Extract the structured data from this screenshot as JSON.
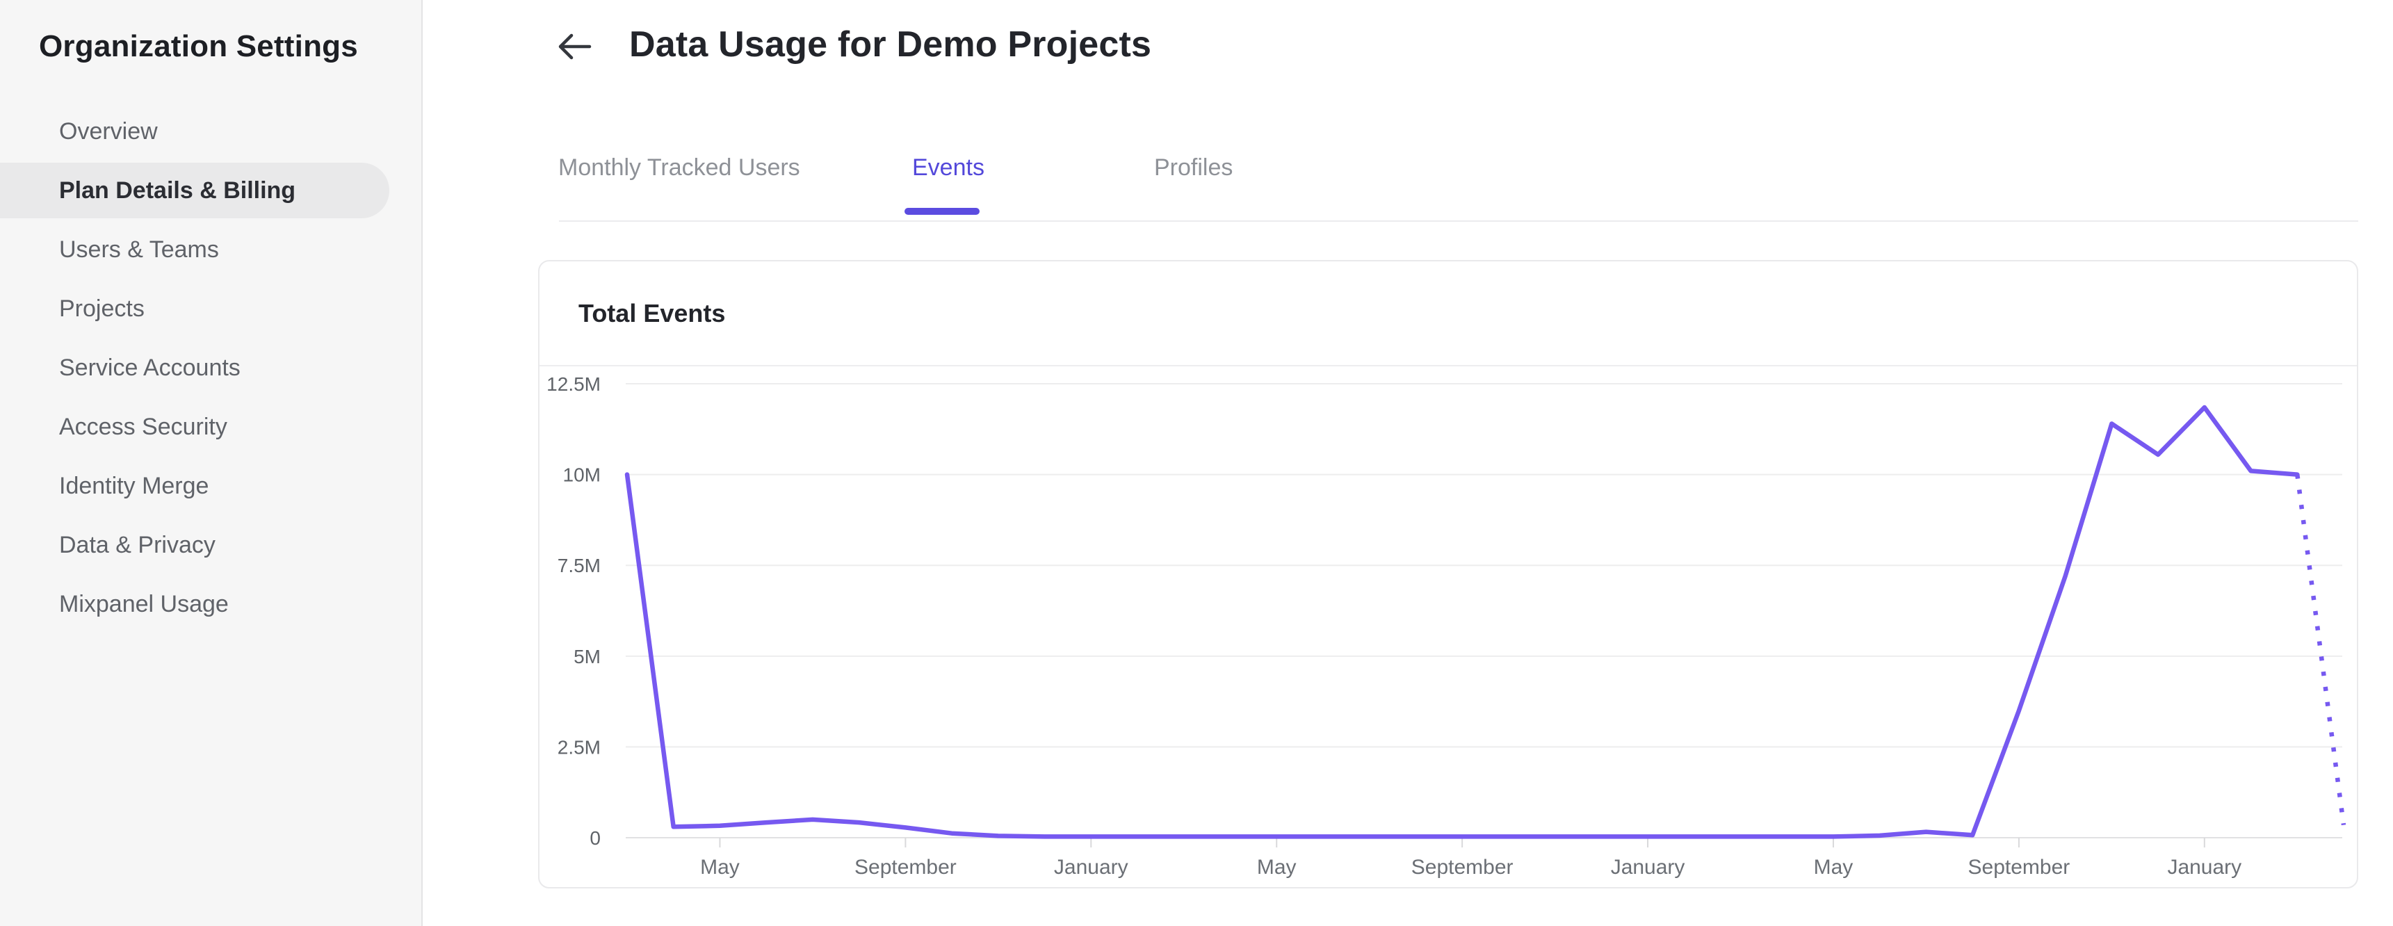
{
  "sidebar": {
    "title": "Organization Settings",
    "items": [
      {
        "label": "Overview",
        "active": false
      },
      {
        "label": "Plan Details & Billing",
        "active": true
      },
      {
        "label": "Users & Teams",
        "active": false
      },
      {
        "label": "Projects",
        "active": false
      },
      {
        "label": "Service Accounts",
        "active": false
      },
      {
        "label": "Access Security",
        "active": false
      },
      {
        "label": "Identity Merge",
        "active": false
      },
      {
        "label": "Data & Privacy",
        "active": false
      },
      {
        "label": "Mixpanel Usage",
        "active": false
      }
    ]
  },
  "header": {
    "back_icon": "arrow-left-icon",
    "title": "Data Usage for Demo Projects"
  },
  "tabs": {
    "items": [
      "Monthly Tracked Users",
      "Events",
      "Profiles"
    ],
    "active": "Events"
  },
  "card": {
    "title": "Total Events"
  },
  "colors": {
    "accent": "#5348da",
    "tab_indicator": "#5b4ce0",
    "chart_line": "#7659f0"
  },
  "chart_data": {
    "type": "line",
    "title": "Total Events",
    "series_name": "Total Events",
    "x_unit": "month",
    "y_unit": "events (millions)",
    "ylim": [
      0,
      12.5
    ],
    "y_ticks": [
      0,
      2.5,
      5,
      7.5,
      10,
      12.5
    ],
    "y_tick_labels": [
      "0",
      "2.5M",
      "5M",
      "7.5M",
      "10M",
      "12.5M"
    ],
    "x_tick_labels": [
      "May",
      "September",
      "January",
      "May",
      "September",
      "January",
      "May",
      "September",
      "January"
    ],
    "x_tick_indices": [
      2,
      6,
      10,
      14,
      18,
      22,
      26,
      30,
      34
    ],
    "values_millions": [
      10,
      0.3,
      0.33,
      0.42,
      0.5,
      0.42,
      0.28,
      0.12,
      0.05,
      0.03,
      0.03,
      0.03,
      0.03,
      0.03,
      0.03,
      0.03,
      0.03,
      0.03,
      0.03,
      0.03,
      0.03,
      0.03,
      0.03,
      0.03,
      0.03,
      0.03,
      0.03,
      0.06,
      0.16,
      0.07,
      3.5,
      7.2,
      11.4,
      10.55,
      11.85,
      10.1,
      10.0,
      0.35
    ],
    "dotted_from_index": 36,
    "grid": "horizontal",
    "legend": "none"
  }
}
